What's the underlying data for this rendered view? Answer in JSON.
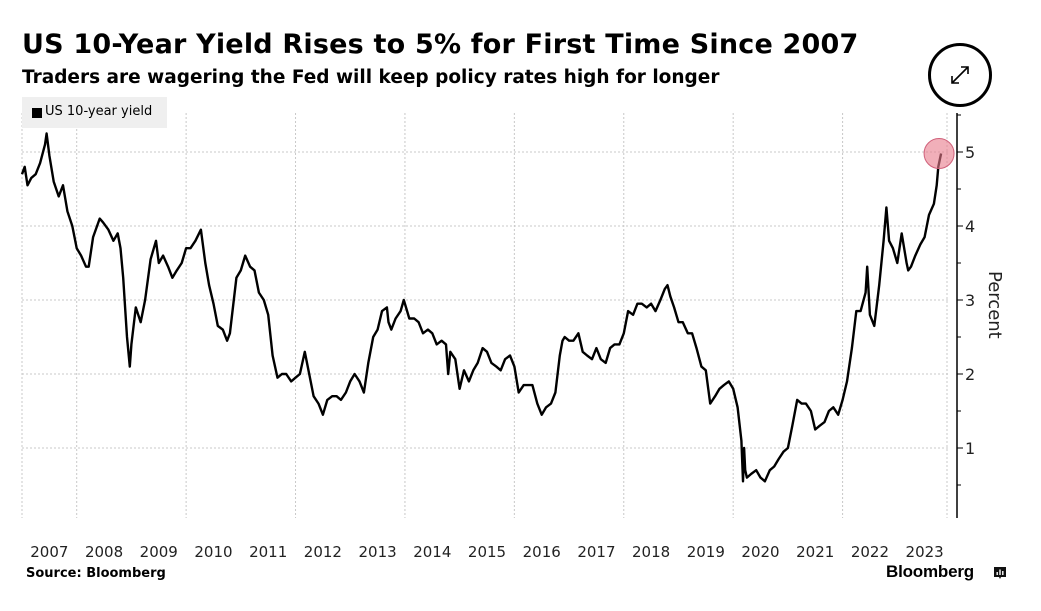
{
  "header": {
    "title": "US 10-Year Yield Rises to 5% for First Time Since 2007",
    "subtitle": "Traders are wagering the Fed will keep policy rates high for longer"
  },
  "controls": {
    "expand_icon": "expand-arrows-icon"
  },
  "footer": {
    "source": "Source: Bloomberg",
    "brand": "Bloomberg",
    "brand_icon": "bloomberg-chart-icon"
  },
  "colors": {
    "line": "#000000",
    "highlight": "#e8798a",
    "grid": "#c8c8c8",
    "legend_bg": "#efefef"
  },
  "chart_data": {
    "type": "line",
    "title": "US 10-Year Yield Rises to 5% for First Time Since 2007",
    "subtitle": "Traders are wagering the Fed will keep policy rates high for longer",
    "xlabel": "",
    "ylabel": "Percent",
    "y_axis_side": "right",
    "xlim": [
      2007.0,
      2024.0
    ],
    "ylim": [
      0.05,
      5.5
    ],
    "grid": true,
    "legend_position": "top-left",
    "x_tick_labels": [
      "2007",
      "2008",
      "2009",
      "2010",
      "2011",
      "2012",
      "2013",
      "2014",
      "2015",
      "2016",
      "2017",
      "2018",
      "2019",
      "2020",
      "2021",
      "2022",
      "2023"
    ],
    "y_ticks": [
      1,
      2,
      3,
      4,
      5
    ],
    "y_tick_labels": [
      "1",
      "2",
      "3",
      "4",
      "5"
    ],
    "series": [
      {
        "name": "US 10-year yield",
        "x": [
          2007.0,
          2007.05,
          2007.1,
          2007.17,
          2007.25,
          2007.33,
          2007.42,
          2007.45,
          2007.5,
          2007.58,
          2007.67,
          2007.75,
          2007.83,
          2007.92,
          2008.0,
          2008.08,
          2008.17,
          2008.22,
          2008.3,
          2008.42,
          2008.48,
          2008.58,
          2008.67,
          2008.75,
          2008.8,
          2008.85,
          2008.92,
          2008.97,
          2009.0,
          2009.08,
          2009.17,
          2009.25,
          2009.35,
          2009.45,
          2009.5,
          2009.58,
          2009.67,
          2009.75,
          2009.83,
          2009.92,
          2010.0,
          2010.08,
          2010.17,
          2010.27,
          2010.35,
          2010.42,
          2010.5,
          2010.58,
          2010.67,
          2010.75,
          2010.8,
          2010.92,
          2011.0,
          2011.08,
          2011.17,
          2011.25,
          2011.33,
          2011.42,
          2011.5,
          2011.58,
          2011.67,
          2011.75,
          2011.83,
          2011.92,
          2012.0,
          2012.08,
          2012.17,
          2012.25,
          2012.33,
          2012.42,
          2012.5,
          2012.58,
          2012.67,
          2012.75,
          2012.83,
          2012.92,
          2013.0,
          2013.08,
          2013.17,
          2013.25,
          2013.33,
          2013.42,
          2013.5,
          2013.58,
          2013.67,
          2013.7,
          2013.75,
          2013.83,
          2013.92,
          2013.98,
          2014.08,
          2014.17,
          2014.25,
          2014.33,
          2014.42,
          2014.5,
          2014.58,
          2014.67,
          2014.75,
          2014.79,
          2014.83,
          2014.92,
          2015.0,
          2015.08,
          2015.17,
          2015.25,
          2015.33,
          2015.42,
          2015.5,
          2015.58,
          2015.67,
          2015.75,
          2015.83,
          2015.92,
          2016.0,
          2016.08,
          2016.17,
          2016.25,
          2016.33,
          2016.42,
          2016.5,
          2016.58,
          2016.67,
          2016.75,
          2016.83,
          2016.88,
          2016.92,
          2017.0,
          2017.08,
          2017.17,
          2017.25,
          2017.33,
          2017.42,
          2017.5,
          2017.58,
          2017.67,
          2017.75,
          2017.83,
          2017.92,
          2018.0,
          2018.08,
          2018.17,
          2018.25,
          2018.33,
          2018.42,
          2018.5,
          2018.58,
          2018.67,
          2018.75,
          2018.8,
          2018.85,
          2018.92,
          2019.0,
          2019.08,
          2019.17,
          2019.25,
          2019.33,
          2019.42,
          2019.5,
          2019.58,
          2019.67,
          2019.75,
          2019.83,
          2019.92,
          2020.0,
          2020.08,
          2020.15,
          2020.18,
          2020.2,
          2020.22,
          2020.25,
          2020.33,
          2020.42,
          2020.5,
          2020.58,
          2020.67,
          2020.75,
          2020.83,
          2020.92,
          2021.0,
          2021.08,
          2021.17,
          2021.25,
          2021.33,
          2021.42,
          2021.5,
          2021.58,
          2021.67,
          2021.75,
          2021.83,
          2021.92,
          2022.0,
          2022.08,
          2022.17,
          2022.25,
          2022.33,
          2022.42,
          2022.45,
          2022.5,
          2022.58,
          2022.67,
          2022.75,
          2022.8,
          2022.85,
          2022.92,
          2023.0,
          2023.08,
          2023.17,
          2023.2,
          2023.25,
          2023.33,
          2023.42,
          2023.5,
          2023.58,
          2023.67,
          2023.72,
          2023.75,
          2023.8
        ],
        "values": [
          4.7,
          4.8,
          4.55,
          4.65,
          4.7,
          4.85,
          5.1,
          5.25,
          4.95,
          4.6,
          4.4,
          4.55,
          4.2,
          4.0,
          3.7,
          3.6,
          3.45,
          3.45,
          3.85,
          4.1,
          4.05,
          3.95,
          3.8,
          3.9,
          3.7,
          3.3,
          2.5,
          2.1,
          2.4,
          2.9,
          2.7,
          3.0,
          3.55,
          3.8,
          3.5,
          3.6,
          3.45,
          3.3,
          3.4,
          3.5,
          3.7,
          3.7,
          3.8,
          3.95,
          3.5,
          3.2,
          2.95,
          2.65,
          2.6,
          2.45,
          2.55,
          3.3,
          3.4,
          3.6,
          3.45,
          3.4,
          3.1,
          3.0,
          2.8,
          2.25,
          1.95,
          2.0,
          2.0,
          1.9,
          1.95,
          2.0,
          2.3,
          2.0,
          1.7,
          1.6,
          1.45,
          1.65,
          1.7,
          1.7,
          1.65,
          1.75,
          1.9,
          2.0,
          1.9,
          1.75,
          2.15,
          2.5,
          2.6,
          2.85,
          2.9,
          2.7,
          2.6,
          2.75,
          2.85,
          3.0,
          2.75,
          2.75,
          2.7,
          2.55,
          2.6,
          2.55,
          2.4,
          2.45,
          2.4,
          2.0,
          2.3,
          2.2,
          1.8,
          2.05,
          1.9,
          2.05,
          2.15,
          2.35,
          2.3,
          2.15,
          2.1,
          2.05,
          2.2,
          2.25,
          2.1,
          1.75,
          1.85,
          1.85,
          1.85,
          1.6,
          1.45,
          1.55,
          1.6,
          1.75,
          2.25,
          2.45,
          2.5,
          2.45,
          2.45,
          2.55,
          2.3,
          2.25,
          2.2,
          2.35,
          2.2,
          2.15,
          2.35,
          2.4,
          2.4,
          2.55,
          2.85,
          2.8,
          2.95,
          2.95,
          2.9,
          2.95,
          2.85,
          3.0,
          3.15,
          3.2,
          3.05,
          2.9,
          2.7,
          2.7,
          2.55,
          2.55,
          2.35,
          2.1,
          2.05,
          1.6,
          1.7,
          1.8,
          1.85,
          1.9,
          1.8,
          1.55,
          1.1,
          0.55,
          1.0,
          0.7,
          0.6,
          0.65,
          0.7,
          0.6,
          0.55,
          0.7,
          0.75,
          0.85,
          0.95,
          1.0,
          1.3,
          1.65,
          1.6,
          1.6,
          1.5,
          1.25,
          1.3,
          1.35,
          1.5,
          1.55,
          1.45,
          1.65,
          1.9,
          2.35,
          2.85,
          2.85,
          3.1,
          3.45,
          2.8,
          2.65,
          3.2,
          3.8,
          4.25,
          3.8,
          3.7,
          3.5,
          3.9,
          3.5,
          3.4,
          3.45,
          3.6,
          3.75,
          3.85,
          4.15,
          4.3,
          4.55,
          4.8,
          4.98
        ]
      }
    ],
    "annotations": [
      {
        "type": "highlight-circle",
        "x": 2023.8,
        "y": 4.98
      }
    ]
  }
}
